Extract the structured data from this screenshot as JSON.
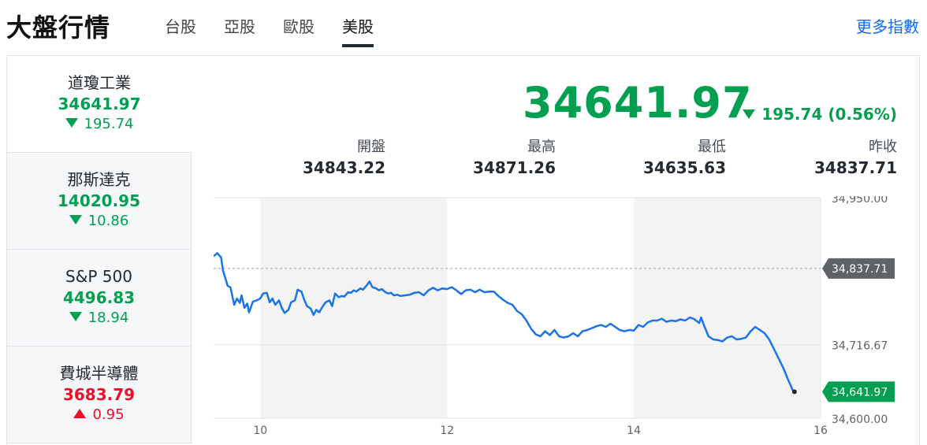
{
  "header": {
    "title": "大盤行情",
    "tabs": [
      {
        "label": "台股"
      },
      {
        "label": "亞股"
      },
      {
        "label": "歐股"
      },
      {
        "label": "美股"
      }
    ],
    "active_tab": "美股",
    "more_link": "更多指數"
  },
  "sidebar": {
    "items": [
      {
        "name": "道瓊工業",
        "value": "34641.97",
        "change": "195.74",
        "direction": "down"
      },
      {
        "name": "那斯達克",
        "value": "14020.95",
        "change": "10.86",
        "direction": "down"
      },
      {
        "name": "S&P 500",
        "value": "4496.83",
        "change": "18.94",
        "direction": "down"
      },
      {
        "name": "費城半導體",
        "value": "3683.79",
        "change": "0.95",
        "direction": "up"
      }
    ]
  },
  "main": {
    "price": "34641.97",
    "change": "195.74 (0.56%)",
    "stats": [
      {
        "label": "開盤",
        "value": "34843.22"
      },
      {
        "label": "最高",
        "value": "34871.26"
      },
      {
        "label": "最低",
        "value": "34635.63"
      },
      {
        "label": "昨收",
        "value": "34837.71"
      }
    ]
  },
  "colors": {
    "down": "#00a050",
    "up": "#eb0f29",
    "line": "#1a73e8",
    "link": "#0f69ff"
  },
  "chart_data": {
    "type": "line",
    "x_tick_labels": [
      "10",
      "12",
      "14",
      "16"
    ],
    "x_ticks": [
      10,
      12,
      14,
      16
    ],
    "xlim": [
      9.5,
      16
    ],
    "shaded_bands": [
      [
        10,
        12
      ],
      [
        14,
        16
      ]
    ],
    "y_tick_labels": [
      "34,950.00",
      "34,716.67",
      "34,600.00"
    ],
    "y_ticks": [
      34950,
      34716.67,
      34600
    ],
    "ylim": [
      34600,
      34950
    ],
    "reference_line": {
      "label": "34,837.71",
      "value": 34837.71
    },
    "last_value_label": "34,641.97",
    "last_value": 34641.97,
    "series": [
      {
        "values": [
          [
            9.5,
            34857
          ],
          [
            9.54,
            34862
          ],
          [
            9.58,
            34855
          ],
          [
            9.6,
            34835
          ],
          [
            9.65,
            34810
          ],
          [
            9.68,
            34808
          ],
          [
            9.72,
            34780
          ],
          [
            9.75,
            34790
          ],
          [
            9.78,
            34783
          ],
          [
            9.8,
            34795
          ],
          [
            9.83,
            34775
          ],
          [
            9.86,
            34782
          ],
          [
            9.88,
            34768
          ],
          [
            9.92,
            34785
          ],
          [
            9.96,
            34787
          ],
          [
            10.0,
            34790
          ],
          [
            10.03,
            34798
          ],
          [
            10.07,
            34799
          ],
          [
            10.1,
            34784
          ],
          [
            10.13,
            34790
          ],
          [
            10.16,
            34780
          ],
          [
            10.2,
            34787
          ],
          [
            10.23,
            34775
          ],
          [
            10.26,
            34767
          ],
          [
            10.3,
            34772
          ],
          [
            10.33,
            34784
          ],
          [
            10.37,
            34787
          ],
          [
            10.4,
            34804
          ],
          [
            10.44,
            34801
          ],
          [
            10.47,
            34788
          ],
          [
            10.5,
            34778
          ],
          [
            10.54,
            34774
          ],
          [
            10.57,
            34764
          ],
          [
            10.6,
            34772
          ],
          [
            10.63,
            34768
          ],
          [
            10.67,
            34778
          ],
          [
            10.7,
            34784
          ],
          [
            10.74,
            34787
          ],
          [
            10.77,
            34778
          ],
          [
            10.8,
            34798
          ],
          [
            10.84,
            34792
          ],
          [
            10.87,
            34794
          ],
          [
            10.9,
            34793
          ],
          [
            10.94,
            34800
          ],
          [
            10.97,
            34799
          ],
          [
            11.0,
            34803
          ],
          [
            11.03,
            34801
          ],
          [
            11.07,
            34806
          ],
          [
            11.1,
            34804
          ],
          [
            11.14,
            34811
          ],
          [
            11.17,
            34817
          ],
          [
            11.2,
            34808
          ],
          [
            11.24,
            34806
          ],
          [
            11.27,
            34803
          ],
          [
            11.3,
            34805
          ],
          [
            11.34,
            34800
          ],
          [
            11.37,
            34798
          ],
          [
            11.4,
            34799
          ],
          [
            11.43,
            34795
          ],
          [
            11.47,
            34796
          ],
          [
            11.5,
            34794
          ],
          [
            11.55,
            34795
          ],
          [
            11.6,
            34796
          ],
          [
            11.65,
            34799
          ],
          [
            11.7,
            34800
          ],
          [
            11.75,
            34795
          ],
          [
            11.8,
            34803
          ],
          [
            11.85,
            34807
          ],
          [
            11.9,
            34803
          ],
          [
            11.95,
            34806
          ],
          [
            12.0,
            34805
          ],
          [
            12.05,
            34808
          ],
          [
            12.1,
            34803
          ],
          [
            12.15,
            34797
          ],
          [
            12.2,
            34803
          ],
          [
            12.25,
            34804
          ],
          [
            12.3,
            34800
          ],
          [
            12.35,
            34804
          ],
          [
            12.4,
            34800
          ],
          [
            12.45,
            34801
          ],
          [
            12.5,
            34801
          ],
          [
            12.55,
            34794
          ],
          [
            12.6,
            34788
          ],
          [
            12.65,
            34783
          ],
          [
            12.7,
            34780
          ],
          [
            12.75,
            34770
          ],
          [
            12.8,
            34765
          ],
          [
            12.85,
            34755
          ],
          [
            12.9,
            34742
          ],
          [
            12.95,
            34733
          ],
          [
            13.0,
            34730
          ],
          [
            13.05,
            34738
          ],
          [
            13.1,
            34732
          ],
          [
            13.15,
            34740
          ],
          [
            13.2,
            34730
          ],
          [
            13.25,
            34728
          ],
          [
            13.3,
            34730
          ],
          [
            13.35,
            34735
          ],
          [
            13.4,
            34730
          ],
          [
            13.45,
            34738
          ],
          [
            13.5,
            34740
          ],
          [
            13.55,
            34743
          ],
          [
            13.6,
            34746
          ],
          [
            13.65,
            34748
          ],
          [
            13.7,
            34745
          ],
          [
            13.75,
            34750
          ],
          [
            13.8,
            34745
          ],
          [
            13.85,
            34740
          ],
          [
            13.9,
            34738
          ],
          [
            13.95,
            34740
          ],
          [
            14.0,
            34739
          ],
          [
            14.05,
            34748
          ],
          [
            14.1,
            34745
          ],
          [
            14.15,
            34752
          ],
          [
            14.2,
            34755
          ],
          [
            14.25,
            34755
          ],
          [
            14.3,
            34758
          ],
          [
            14.35,
            34753
          ],
          [
            14.4,
            34755
          ],
          [
            14.45,
            34754
          ],
          [
            14.5,
            34757
          ],
          [
            14.55,
            34755
          ],
          [
            14.6,
            34760
          ],
          [
            14.65,
            34757
          ],
          [
            14.7,
            34751
          ],
          [
            14.72,
            34760
          ],
          [
            14.75,
            34748
          ],
          [
            14.8,
            34730
          ],
          [
            14.85,
            34725
          ],
          [
            14.9,
            34724
          ],
          [
            14.95,
            34722
          ],
          [
            15.0,
            34728
          ],
          [
            15.05,
            34730
          ],
          [
            15.1,
            34725
          ],
          [
            15.15,
            34726
          ],
          [
            15.2,
            34728
          ],
          [
            15.25,
            34738
          ],
          [
            15.3,
            34745
          ],
          [
            15.35,
            34740
          ],
          [
            15.4,
            34735
          ],
          [
            15.45,
            34725
          ],
          [
            15.5,
            34710
          ],
          [
            15.55,
            34695
          ],
          [
            15.6,
            34680
          ],
          [
            15.65,
            34662
          ],
          [
            15.7,
            34645
          ],
          [
            15.72,
            34641.97
          ]
        ]
      }
    ]
  }
}
